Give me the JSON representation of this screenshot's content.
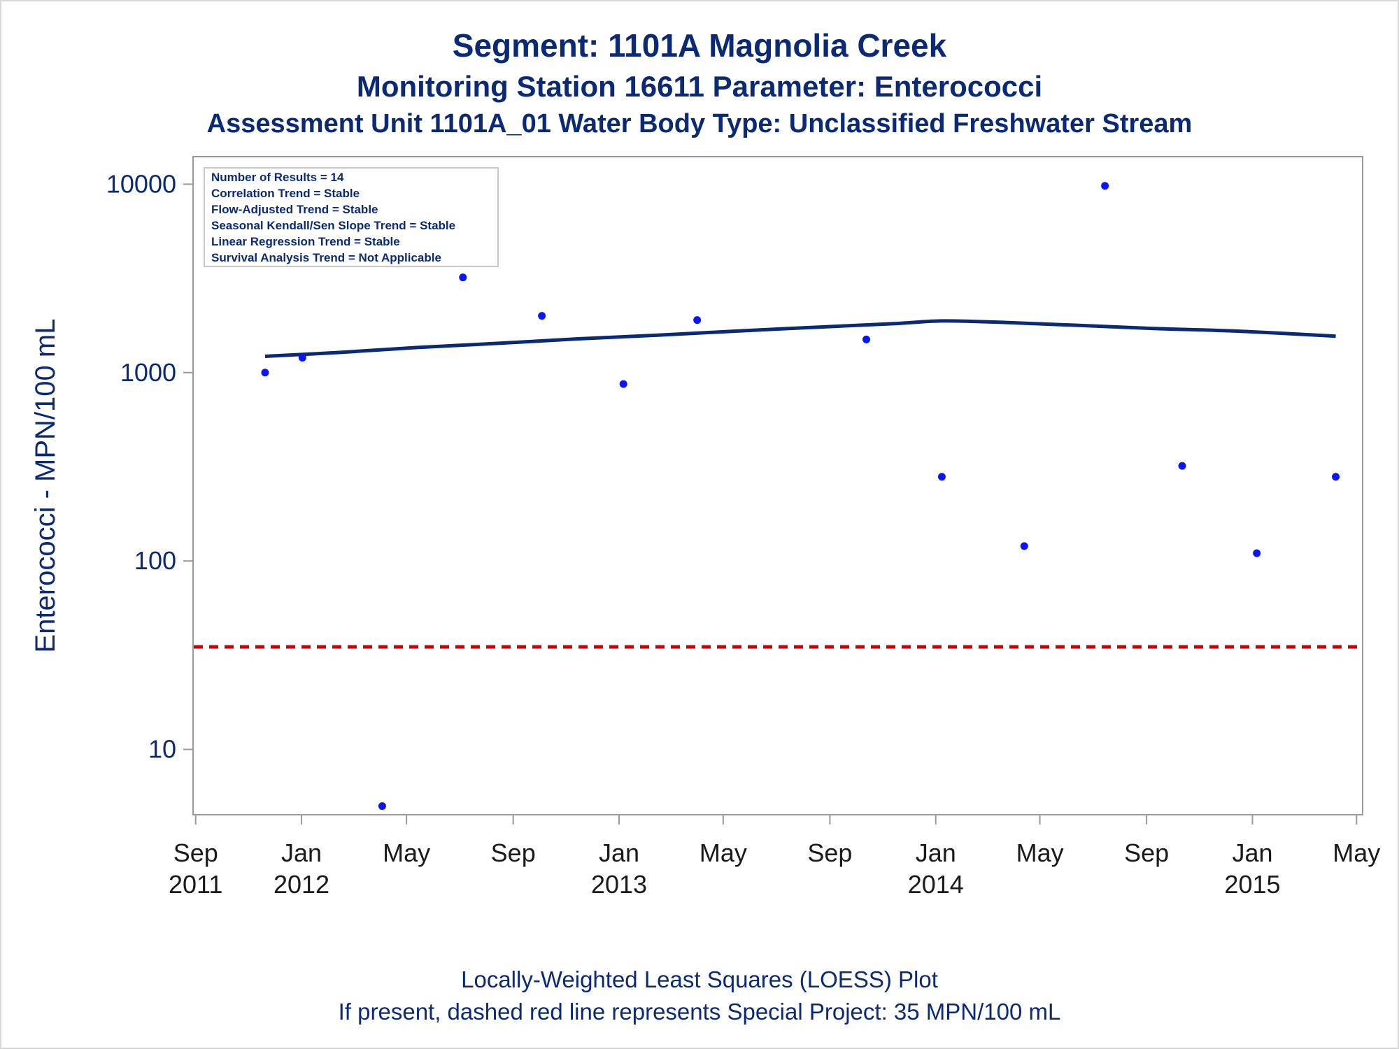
{
  "titles": {
    "line1": "Segment: 1101A  Magnolia Creek",
    "line2": "Monitoring Station 16611 Parameter: Enterococci",
    "line3": "Assessment Unit 1101A_01   Water Body Type: Unclassified Freshwater Stream"
  },
  "footnotes": {
    "line1": "Locally-Weighted Least Squares (LOESS) Plot",
    "line2": "If present, dashed red line represents Special Project: 35 MPN/100 mL"
  },
  "inset": [
    "Number of Results = 14",
    "Correlation Trend = Stable",
    "Flow-Adjusted Trend = Stable",
    "Seasonal Kendall/Sen Slope Trend = Stable",
    "Linear Regression Trend = Stable",
    "Survival Analysis Trend = Not Applicable"
  ],
  "colors": {
    "text": "#0a2a78",
    "points": "#0a14ff",
    "loess": "#0a2a78",
    "reference": "#cc0000",
    "frame": "#9a9a9a"
  },
  "chart_data": {
    "type": "scatter",
    "ylabel": "Enterococci - MPN/100 mL",
    "yscale": "log",
    "ylim": [
      4.5,
      14000
    ],
    "yticks": [
      10,
      100,
      1000,
      10000
    ],
    "yticklabels": [
      "10",
      "100",
      "1000",
      "10000"
    ],
    "xlim": [
      "2011-08-29",
      "2015-05-08"
    ],
    "xticks": [
      {
        "date": "2011-09-01",
        "label": [
          "Sep",
          "2011"
        ]
      },
      {
        "date": "2012-01-01",
        "label": [
          "Jan",
          "2012"
        ]
      },
      {
        "date": "2012-05-01",
        "label": [
          "May",
          ""
        ]
      },
      {
        "date": "2012-09-01",
        "label": [
          "Sep",
          ""
        ]
      },
      {
        "date": "2013-01-01",
        "label": [
          "Jan",
          "2013"
        ]
      },
      {
        "date": "2013-05-01",
        "label": [
          "May",
          ""
        ]
      },
      {
        "date": "2013-09-01",
        "label": [
          "Sep",
          ""
        ]
      },
      {
        "date": "2014-01-01",
        "label": [
          "Jan",
          "2014"
        ]
      },
      {
        "date": "2014-05-01",
        "label": [
          "May",
          ""
        ]
      },
      {
        "date": "2014-09-01",
        "label": [
          "Sep",
          ""
        ]
      },
      {
        "date": "2015-01-01",
        "label": [
          "Jan",
          "2015"
        ]
      },
      {
        "date": "2015-05-01",
        "label": [
          "May",
          ""
        ]
      }
    ],
    "points": [
      {
        "x": "2011-11-20",
        "y": 1000
      },
      {
        "x": "2012-01-02",
        "y": 1200
      },
      {
        "x": "2012-04-03",
        "y": 5
      },
      {
        "x": "2012-07-05",
        "y": 3200
      },
      {
        "x": "2012-10-04",
        "y": 2000
      },
      {
        "x": "2013-01-06",
        "y": 870
      },
      {
        "x": "2013-04-01",
        "y": 1900
      },
      {
        "x": "2013-10-13",
        "y": 1500
      },
      {
        "x": "2014-01-08",
        "y": 280
      },
      {
        "x": "2014-04-13",
        "y": 120
      },
      {
        "x": "2014-07-15",
        "y": 9800
      },
      {
        "x": "2014-10-12",
        "y": 320
      },
      {
        "x": "2015-01-06",
        "y": 110
      },
      {
        "x": "2015-04-07",
        "y": 280
      }
    ],
    "loess": [
      {
        "x": "2011-11-20",
        "y": 1220
      },
      {
        "x": "2012-02-15",
        "y": 1280
      },
      {
        "x": "2012-05-15",
        "y": 1360
      },
      {
        "x": "2012-08-15",
        "y": 1430
      },
      {
        "x": "2012-11-15",
        "y": 1510
      },
      {
        "x": "2013-02-15",
        "y": 1580
      },
      {
        "x": "2013-05-15",
        "y": 1660
      },
      {
        "x": "2013-08-15",
        "y": 1740
      },
      {
        "x": "2013-11-15",
        "y": 1820
      },
      {
        "x": "2014-01-08",
        "y": 1880
      },
      {
        "x": "2014-03-15",
        "y": 1850
      },
      {
        "x": "2014-06-15",
        "y": 1780
      },
      {
        "x": "2014-09-15",
        "y": 1710
      },
      {
        "x": "2014-12-15",
        "y": 1660
      },
      {
        "x": "2015-04-07",
        "y": 1560
      }
    ],
    "reference_line": {
      "y": 35,
      "style": "dashed"
    },
    "grid": false
  }
}
